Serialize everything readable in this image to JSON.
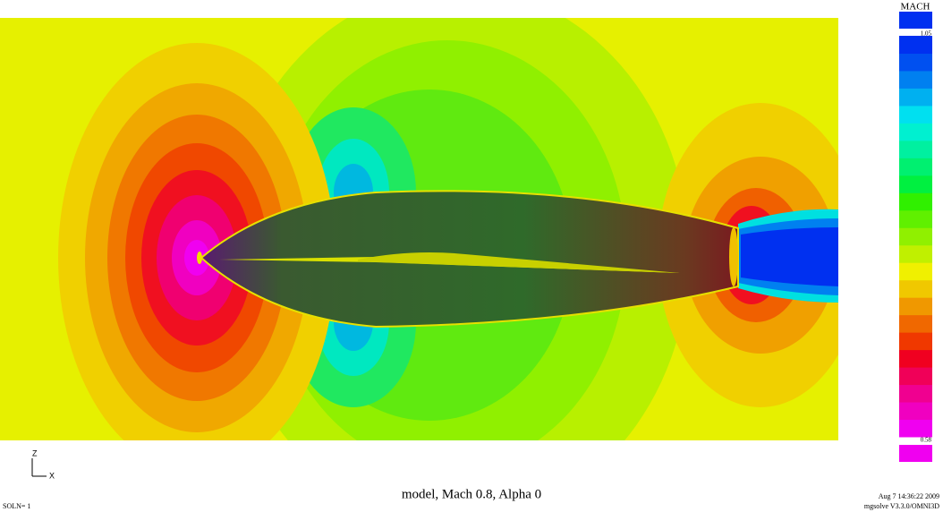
{
  "legend": {
    "title": "MACH",
    "max_label": "1.05",
    "min_label": "0.58"
  },
  "axes": {
    "vertical": "Z",
    "horizontal": "X"
  },
  "caption": "model, Mach 0.8, Alpha 0",
  "footer": {
    "solution": "SOLN= 1",
    "timestamp": "Aug 7 14:36:22 2009",
    "software": "mgsolve V3.3.0/OMNI3D"
  }
}
